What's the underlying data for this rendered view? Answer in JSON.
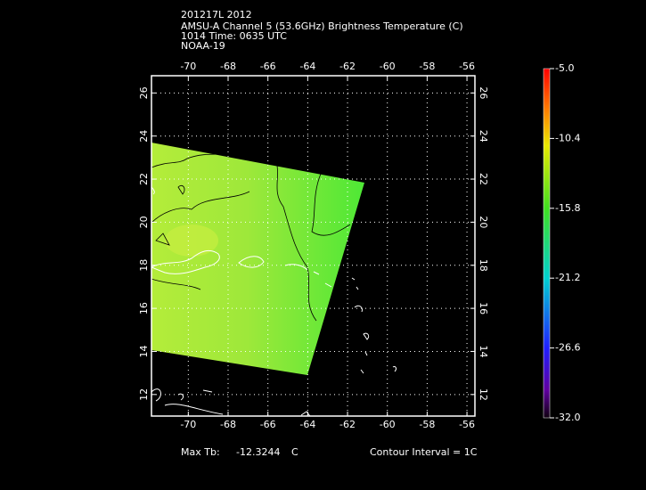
{
  "header": {
    "lines": [
      "201217L 2012",
      "AMSU-A Channel 5 (53.6GHz) Brightness Temperature (C)",
      "1014 Time: 0635 UTC",
      "NOAA-19"
    ]
  },
  "map": {
    "xlim": [
      -71.85,
      -55.6
    ],
    "ylim": [
      11,
      26.8
    ],
    "xticks": [
      -70,
      -68,
      -66,
      -64,
      -62,
      -60,
      -58,
      -56
    ],
    "yticks": [
      12,
      14,
      16,
      18,
      20,
      22,
      24,
      26
    ],
    "grid": true
  },
  "colorbar": {
    "range": [
      -32,
      -5
    ],
    "ticks": [
      {
        "value": -5,
        "label": "-5.0"
      },
      {
        "value": -10.4,
        "label": "-10.4"
      },
      {
        "value": -15.8,
        "label": "-15.8"
      },
      {
        "value": -21.2,
        "label": "-21.2"
      },
      {
        "value": -26.6,
        "label": "-26.6"
      },
      {
        "value": -32,
        "label": "-32.0"
      }
    ]
  },
  "footer": {
    "max_label": "Max Tb:",
    "max_value": -12.3244,
    "unit": "C",
    "contour": "Contour Interval = 1C"
  }
}
